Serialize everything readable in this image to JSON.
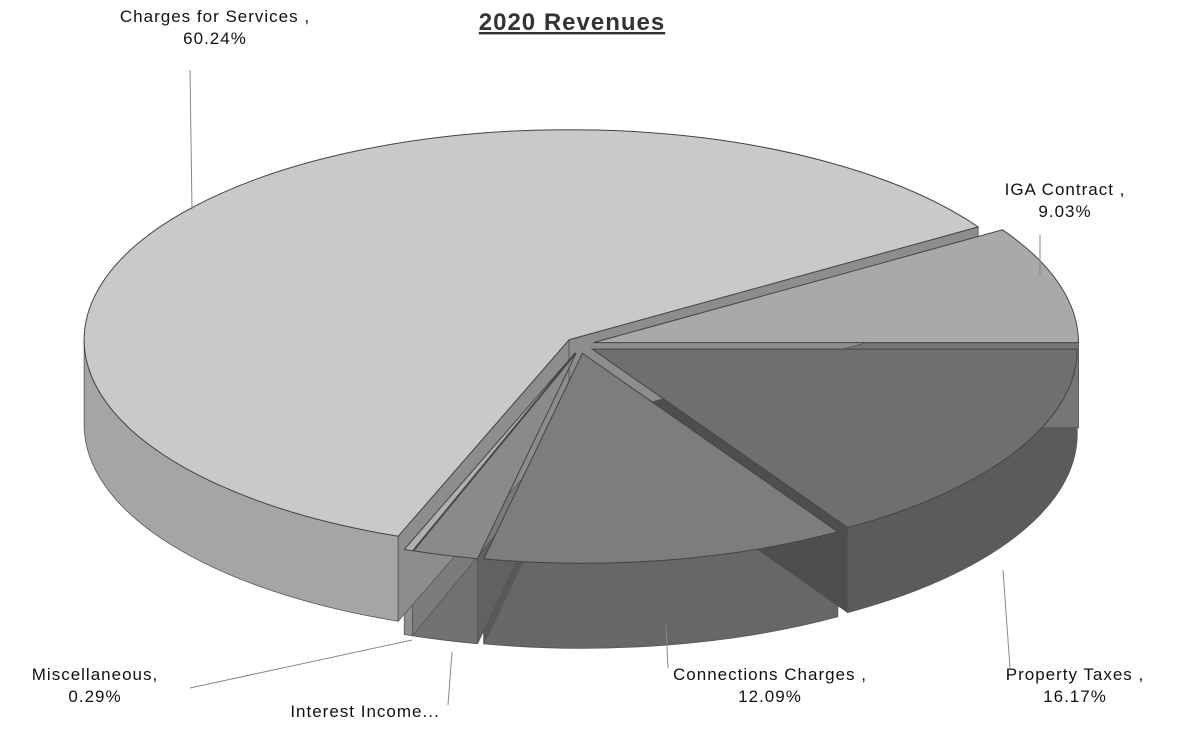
{
  "chart_data": {
    "type": "pie",
    "title": "2020 Revenues",
    "categories": [
      "IGA Contract ,",
      "Property Taxes ,",
      "Connections Charges ,",
      "Interest Income...",
      "Miscellaneous,",
      "Charges for Services ,"
    ],
    "values": [
      9.03,
      16.17,
      12.09,
      2.18,
      0.29,
      60.24
    ],
    "value_labels": [
      "9.03%",
      "16.17%",
      "12.09%",
      null,
      "0.29%",
      "60.24%"
    ],
    "colors": [
      "#a9a9a9",
      "#6f6f6f",
      "#7d7d7d",
      "#8a8a8a",
      "#b0b0b0",
      "#c9c9c9"
    ]
  }
}
